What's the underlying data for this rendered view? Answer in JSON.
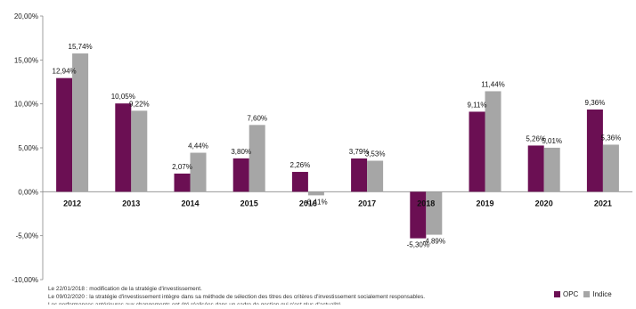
{
  "chart_data": {
    "type": "bar",
    "categories": [
      "2012",
      "2013",
      "2014",
      "2015",
      "2016",
      "2017",
      "2018",
      "2019",
      "2020",
      "2021"
    ],
    "series": [
      {
        "name": "OPC",
        "color": "#6b0f53",
        "values": [
          12.94,
          10.05,
          2.07,
          3.8,
          2.26,
          3.79,
          -5.3,
          9.11,
          5.26,
          9.36
        ],
        "labels": [
          "12,94%",
          "10,05%",
          "2,07%",
          "3,80%",
          "2,26%",
          "3,79%",
          "-5,30%",
          "9,11%",
          "5,26%",
          "9,36%"
        ]
      },
      {
        "name": "Indice",
        "color": "#a6a6a6",
        "values": [
          15.74,
          9.22,
          4.44,
          7.6,
          -0.41,
          3.53,
          -4.89,
          11.44,
          5.01,
          5.36
        ],
        "labels": [
          "15,74%",
          "9,22%",
          "4,44%",
          "7,60%",
          "-0,41%",
          "3,53%",
          "-4,89%",
          "11,44%",
          "5,01%",
          "5,36%"
        ]
      }
    ],
    "ylim": [
      -10,
      20
    ],
    "yticks": [
      20,
      15,
      10,
      5,
      0,
      -5,
      -10
    ],
    "ytick_labels": [
      "20,00%",
      "15,00%",
      "10,00%",
      "5,00%",
      "0,00%",
      "-5,00%",
      "-10,00%"
    ],
    "grid": false,
    "legend_position": "bottom-right"
  },
  "notes": [
    "Le 22/01/2018 : modification de la stratégie d'investissement.",
    "Le 09/02/2020 : la stratégie d'investissement intègre dans sa méthode de sélection des titres des critères d'investissement socialement responsables.",
    "Les performances antérieures aux changements ont été réalisées dans un cadre de gestion qui n'est plus d'actualité."
  ],
  "legend": {
    "opc_label": "OPC",
    "indice_label": "Indice"
  }
}
